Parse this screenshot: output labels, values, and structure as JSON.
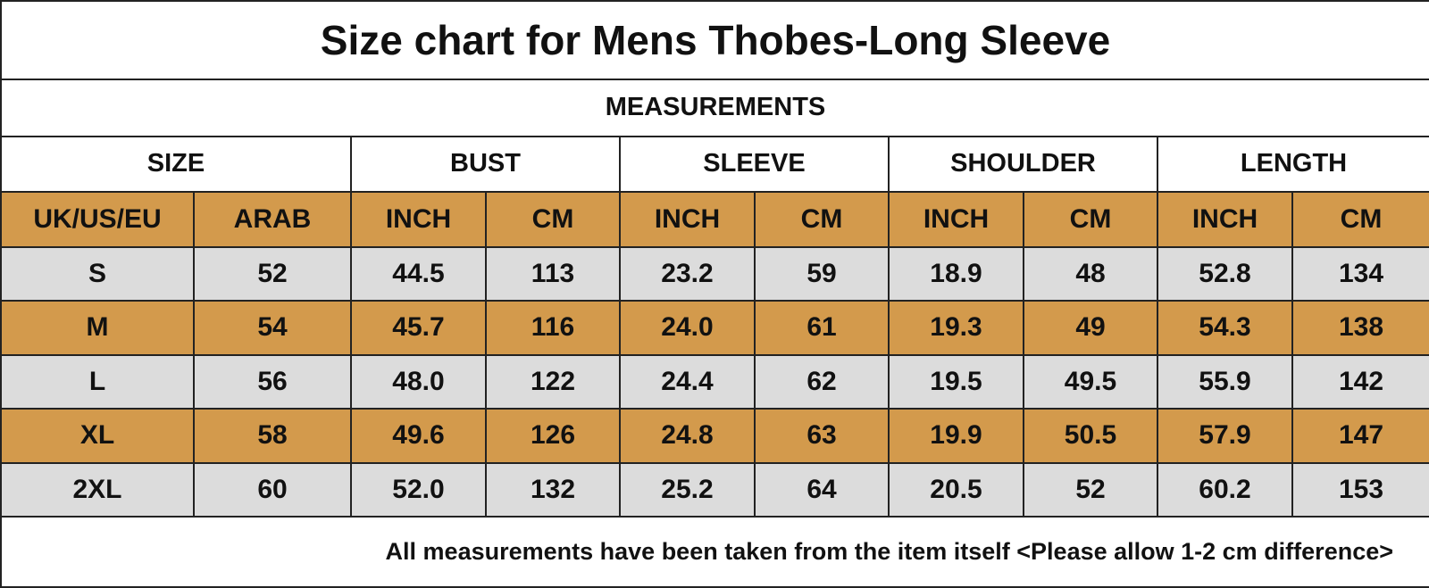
{
  "title": "Size chart for Mens Thobes-Long Sleeve",
  "section": "MEASUREMENTS",
  "groups": [
    "SIZE",
    "BUST",
    "SLEEVE",
    "SHOULDER",
    "LENGTH"
  ],
  "subheaders": [
    "UK/US/EU",
    "ARAB",
    "INCH",
    "CM",
    "INCH",
    "CM",
    "INCH",
    "CM",
    "INCH",
    "CM"
  ],
  "rows": [
    [
      "S",
      "52",
      "44.5",
      "113",
      "23.2",
      "59",
      "18.9",
      "48",
      "52.8",
      "134"
    ],
    [
      "M",
      "54",
      "45.7",
      "116",
      "24.0",
      "61",
      "19.3",
      "49",
      "54.3",
      "138"
    ],
    [
      "L",
      "56",
      "48.0",
      "122",
      "24.4",
      "62",
      "19.5",
      "49.5",
      "55.9",
      "142"
    ],
    [
      "XL",
      "58",
      "49.6",
      "126",
      "24.8",
      "63",
      "19.9",
      "50.5",
      "57.9",
      "147"
    ],
    [
      "2XL",
      "60",
      "52.0",
      "132",
      "25.2",
      "64",
      "20.5",
      "52",
      "60.2",
      "153"
    ]
  ],
  "footer": "All measurements have been taken from the item itself <Please allow 1-2 cm difference>"
}
